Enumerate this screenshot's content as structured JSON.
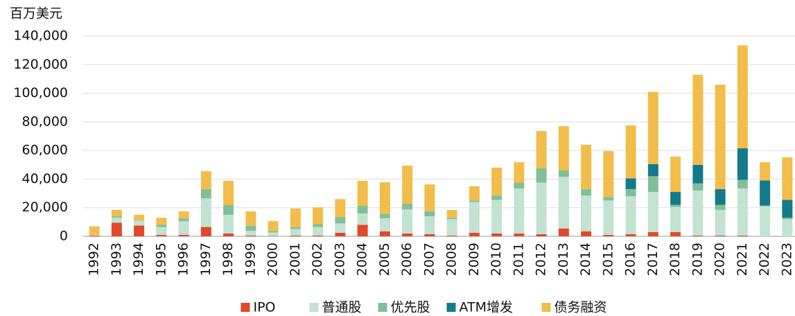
{
  "chart_data": {
    "type": "stacked-bar",
    "y_axis_label": "百万美元",
    "categories": [
      "1992",
      "1993",
      "1994",
      "1995",
      "1996",
      "1997",
      "1998",
      "1999",
      "2000",
      "2001",
      "2002",
      "2003",
      "2004",
      "2005",
      "2006",
      "2007",
      "2008",
      "2009",
      "2010",
      "2011",
      "2012",
      "2013",
      "2014",
      "2015",
      "2016",
      "2017",
      "2018",
      "2019",
      "2020",
      "2021",
      "2022",
      "2023"
    ],
    "series": [
      {
        "name": "IPO",
        "color": "#e0482a",
        "values": [
          500,
          9500,
          7500,
          1000,
          1000,
          6500,
          2000,
          500,
          200,
          500,
          500,
          2500,
          8000,
          3500,
          2000,
          1500,
          500,
          2500,
          2000,
          2000,
          1500,
          5500,
          3500,
          1000,
          1500,
          3000,
          3000,
          500,
          500,
          500,
          0,
          0
        ]
      },
      {
        "name": "普通股",
        "color": "#c2e2d2",
        "values": [
          500,
          3500,
          3500,
          5500,
          9500,
          20000,
          13000,
          3400,
          2500,
          4500,
          6000,
          6500,
          8000,
          9100,
          16900,
          12500,
          11500,
          21500,
          23500,
          31500,
          36000,
          36000,
          25000,
          24000,
          26500,
          28000,
          17500,
          31500,
          18000,
          33000,
          21000,
          12000
        ]
      },
      {
        "name": "优先股",
        "color": "#80bf99",
        "values": [
          0,
          1000,
          500,
          1500,
          2000,
          6500,
          6800,
          3400,
          1000,
          1500,
          2000,
          4500,
          5300,
          2900,
          3900,
          3500,
          1000,
          1000,
          3000,
          4000,
          10000,
          4500,
          4500,
          2500,
          5000,
          11000,
          1500,
          5000,
          3500,
          6000,
          500,
          1000
        ]
      },
      {
        "name": "ATM增发",
        "color": "#137a8a",
        "values": [
          0,
          0,
          0,
          0,
          0,
          0,
          0,
          0,
          0,
          0,
          0,
          0,
          0,
          0,
          0,
          0,
          0,
          0,
          0,
          0,
          0,
          0,
          0,
          0,
          7500,
          8500,
          9000,
          13000,
          11000,
          22000,
          17500,
          12500
        ]
      },
      {
        "name": "债务融资",
        "color": "#f2bd4b",
        "values": [
          6000,
          4500,
          3500,
          5000,
          5000,
          12500,
          17000,
          10100,
          7000,
          13000,
          11800,
          12500,
          17500,
          22300,
          26600,
          18800,
          5400,
          10000,
          19500,
          14300,
          26100,
          31000,
          31000,
          32100,
          37000,
          50500,
          24700,
          63000,
          73000,
          72000,
          12800,
          29700
        ]
      }
    ],
    "ylim": [
      0,
      140000
    ],
    "yticks": [
      0,
      {
        "value": 20000,
        "label": "20,000"
      },
      {
        "value": 40000,
        "label": "40,000"
      },
      {
        "value": 60000,
        "label": "60,000"
      },
      {
        "value": 80000,
        "label": "80,000"
      },
      {
        "value": 100000,
        "label": "100,000"
      },
      {
        "value": 120000,
        "label": "120,000"
      },
      {
        "value": 140000,
        "label": "140,000"
      }
    ],
    "grid": true,
    "legend": "bottom"
  }
}
